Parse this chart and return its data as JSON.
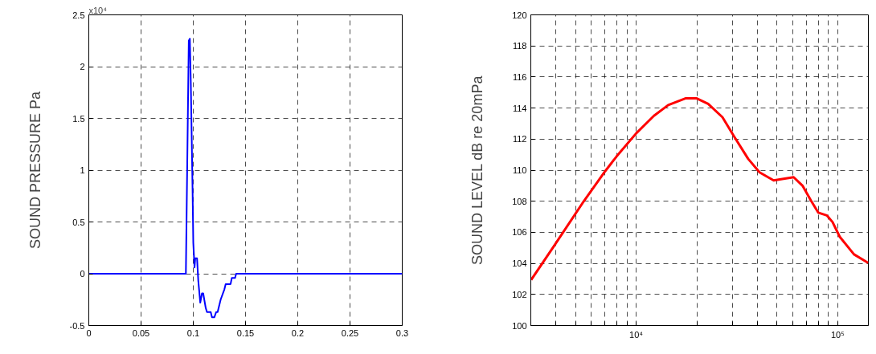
{
  "chart_data": [
    {
      "type": "line",
      "ylabel": "SOUND PRESSURE Pa",
      "annotations": [
        "x10⁴"
      ],
      "x": [
        0,
        0.0929,
        0.0957,
        0.0967,
        0.0976,
        0.0993,
        0.1,
        0.1012,
        0.1019,
        0.1036,
        0.1048,
        0.1067,
        0.1083,
        0.1095,
        0.1119,
        0.1131,
        0.1167,
        0.1179,
        0.1202,
        0.1219,
        0.1233,
        0.1262,
        0.1298,
        0.131,
        0.1357,
        0.1369,
        0.14,
        0.141,
        0.3
      ],
      "series": [
        {
          "color": "#0000ff",
          "values": [
            0,
            0,
            2.25,
            2.27,
            1.86,
            0.82,
            0.3,
            0.06,
            0.15,
            0.15,
            -0.07,
            -0.28,
            -0.19,
            -0.19,
            -0.33,
            -0.37,
            -0.37,
            -0.42,
            -0.42,
            -0.37,
            -0.37,
            -0.25,
            -0.15,
            -0.1,
            -0.1,
            -0.04,
            -0.04,
            0,
            0
          ]
        }
      ],
      "xlim": [
        0,
        0.3
      ],
      "xticks": [
        0,
        0.05,
        0.1,
        0.15,
        0.2,
        0.25,
        0.3
      ],
      "ylim": [
        -0.5,
        2.5
      ],
      "yticks": [
        -0.5,
        0,
        0.5,
        1,
        1.5,
        2,
        2.5
      ],
      "grid": true
    },
    {
      "type": "line",
      "ylabel": "SOUND LEVEL dB re 20mPa",
      "log": "x",
      "x": [
        3013,
        3900,
        5410,
        7030,
        8010,
        10000,
        12250,
        14420,
        17540,
        19980,
        22760,
        26800,
        30530,
        35950,
        40980,
        48120,
        53080,
        60470,
        66920,
        73650,
        80080,
        88300,
        94300,
        102400,
        120500,
        141800
      ],
      "series": [
        {
          "color": "#ff0000",
          "values": [
            102.94,
            105.1,
            107.87,
            109.95,
            110.9,
            112.37,
            113.5,
            114.19,
            114.62,
            114.62,
            114.27,
            113.41,
            112.2,
            110.73,
            109.86,
            109.34,
            109.43,
            109.55,
            109.0,
            108.05,
            107.27,
            107.09,
            106.66,
            105.71,
            104.58,
            104.03
          ]
        }
      ],
      "xlim": [
        3000,
        142000
      ],
      "xticks": [
        {
          "value": 3000,
          "label": null
        },
        {
          "value": 4000,
          "label": null
        },
        {
          "value": 5000,
          "label": null
        },
        {
          "value": 6000,
          "label": null
        },
        {
          "value": 7000,
          "label": null
        },
        {
          "value": 8000,
          "label": null
        },
        {
          "value": 9000,
          "label": null
        },
        {
          "value": 10000,
          "label": "10⁴"
        },
        {
          "value": 20000,
          "label": null
        },
        {
          "value": 30000,
          "label": null
        },
        {
          "value": 40000,
          "label": null
        },
        {
          "value": 50000,
          "label": null
        },
        {
          "value": 60000,
          "label": null
        },
        {
          "value": 70000,
          "label": null
        },
        {
          "value": 80000,
          "label": null
        },
        {
          "value": 90000,
          "label": null
        },
        {
          "value": 100000,
          "label": "10⁵"
        }
      ],
      "ylim": [
        100,
        120
      ],
      "yticks": [
        100,
        102,
        104,
        106,
        108,
        110,
        112,
        114,
        116,
        118,
        120
      ],
      "grid": true
    }
  ]
}
